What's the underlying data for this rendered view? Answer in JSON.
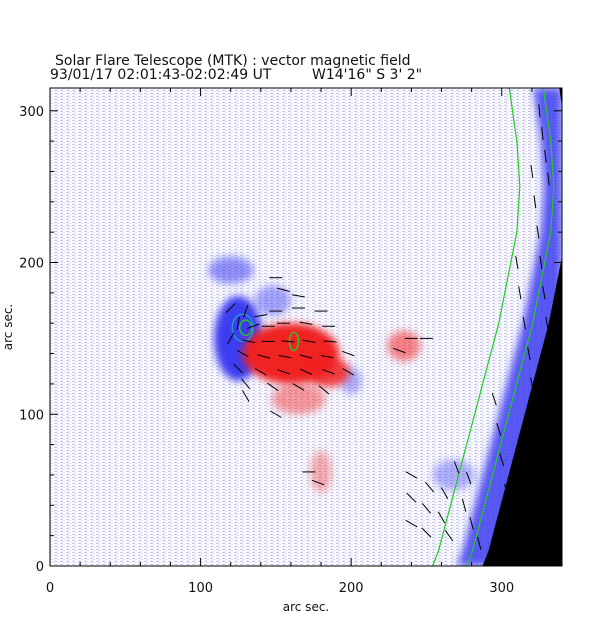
{
  "header": {
    "title": "Solar Flare Telescope (MTK) : vector magnetic field",
    "time_line": "93/01/17  02:01:43-02:02:49 UT",
    "position_line": "W14'16\"  S 3' 2\""
  },
  "chart_data": {
    "type": "heatmap",
    "title": "Solar Flare Telescope (MTK) : vector magnetic field",
    "subtitle": "93/01/17  02:01:43-02:02:49 UT    W14'16\"  S 3' 2\"",
    "xlabel": "arc sec.",
    "ylabel": "arc sec.",
    "xlim": [
      0,
      340
    ],
    "ylim": [
      0,
      315
    ],
    "xticks": [
      "0",
      "100",
      "200",
      "300"
    ],
    "yticks": [
      "0",
      "100",
      "200",
      "300"
    ],
    "grid": false,
    "colors": {
      "negative_polarity": "#3c3cf0",
      "positive_polarity": "#f02020",
      "neutral_noise": "#c8c8ee",
      "off_limb": "#000000",
      "limb_contour": "#22cc22",
      "vectors": "#000000"
    },
    "limb": [
      [
        305,
        315
      ],
      [
        310,
        280
      ],
      [
        312,
        250
      ],
      [
        310,
        220
      ],
      [
        304,
        190
      ],
      [
        298,
        160
      ],
      [
        290,
        130
      ],
      [
        282,
        100
      ],
      [
        274,
        70
      ],
      [
        266,
        40
      ],
      [
        258,
        10
      ],
      [
        254,
        0
      ]
    ],
    "features": [
      {
        "kind": "negative",
        "x": 125,
        "y": 150,
        "rx": 16,
        "ry": 28,
        "strength": 1.0
      },
      {
        "kind": "negative",
        "x": 120,
        "y": 195,
        "rx": 15,
        "ry": 9,
        "strength": 0.55
      },
      {
        "kind": "negative",
        "x": 148,
        "y": 175,
        "rx": 12,
        "ry": 10,
        "strength": 0.45
      },
      {
        "kind": "negative",
        "x": 200,
        "y": 122,
        "rx": 7,
        "ry": 9,
        "strength": 0.4
      },
      {
        "kind": "positive",
        "x": 160,
        "y": 140,
        "rx": 32,
        "ry": 20,
        "strength": 1.0
      },
      {
        "kind": "positive",
        "x": 185,
        "y": 128,
        "rx": 14,
        "ry": 10,
        "strength": 0.85
      },
      {
        "kind": "positive",
        "x": 165,
        "y": 110,
        "rx": 18,
        "ry": 10,
        "strength": 0.45
      },
      {
        "kind": "positive",
        "x": 235,
        "y": 145,
        "rx": 11,
        "ry": 10,
        "strength": 0.55
      },
      {
        "kind": "positive",
        "x": 180,
        "y": 62,
        "rx": 7,
        "ry": 14,
        "strength": 0.35
      },
      {
        "kind": "negative",
        "x": 268,
        "y": 60,
        "rx": 14,
        "ry": 10,
        "strength": 0.4
      }
    ],
    "contours": [
      {
        "color": "#2299cc",
        "x": 128,
        "y": 157,
        "rx": 7,
        "ry": 9
      },
      {
        "color": "#22cc22",
        "x": 130,
        "y": 157,
        "rx": 4,
        "ry": 5
      },
      {
        "color": "#22cc22",
        "x": 162,
        "y": 148,
        "rx": 3,
        "ry": 6
      }
    ],
    "vectors": [
      [
        120,
        170,
        45,
        1
      ],
      [
        130,
        168,
        70,
        1
      ],
      [
        140,
        165,
        10,
        1
      ],
      [
        150,
        168,
        0,
        1
      ],
      [
        165,
        170,
        0,
        1
      ],
      [
        180,
        168,
        0,
        1
      ],
      [
        125,
        160,
        80,
        1
      ],
      [
        135,
        158,
        20,
        1
      ],
      [
        145,
        158,
        0,
        1
      ],
      [
        155,
        160,
        0,
        1
      ],
      [
        170,
        160,
        -10,
        1
      ],
      [
        185,
        158,
        0,
        1
      ],
      [
        120,
        150,
        60,
        1
      ],
      [
        132,
        148,
        -10,
        1
      ],
      [
        145,
        148,
        0,
        1
      ],
      [
        158,
        148,
        -5,
        1
      ],
      [
        172,
        148,
        -10,
        1
      ],
      [
        186,
        148,
        -5,
        1
      ],
      [
        128,
        140,
        -30,
        1
      ],
      [
        142,
        138,
        -15,
        1
      ],
      [
        156,
        138,
        -10,
        1
      ],
      [
        170,
        138,
        -15,
        1
      ],
      [
        184,
        138,
        -10,
        1
      ],
      [
        198,
        140,
        -20,
        1
      ],
      [
        125,
        130,
        -45,
        1
      ],
      [
        140,
        128,
        -30,
        1
      ],
      [
        155,
        128,
        -20,
        1
      ],
      [
        170,
        128,
        -25,
        1
      ],
      [
        185,
        128,
        -20,
        1
      ],
      [
        198,
        128,
        -30,
        1
      ],
      [
        130,
        120,
        -50,
        1
      ],
      [
        148,
        118,
        -35,
        1
      ],
      [
        165,
        118,
        -30,
        1
      ],
      [
        182,
        116,
        -40,
        1
      ],
      [
        130,
        112,
        -60,
        1
      ],
      [
        150,
        190,
        0,
        1
      ],
      [
        155,
        182,
        -15,
        1
      ],
      [
        165,
        178,
        -10,
        1
      ],
      [
        240,
        150,
        0,
        1
      ],
      [
        250,
        150,
        0,
        1
      ],
      [
        232,
        142,
        -20,
        1
      ],
      [
        150,
        100,
        -30,
        1
      ],
      [
        172,
        62,
        0,
        1
      ],
      [
        178,
        55,
        -20,
        1
      ],
      [
        240,
        60,
        -30,
        1
      ],
      [
        252,
        52,
        -50,
        1
      ],
      [
        262,
        48,
        -60,
        1
      ],
      [
        240,
        45,
        -45,
        1
      ],
      [
        250,
        38,
        -50,
        1
      ],
      [
        260,
        32,
        -60,
        1
      ],
      [
        240,
        28,
        -30,
        1
      ],
      [
        250,
        22,
        -45,
        1
      ],
      [
        265,
        20,
        -55,
        1
      ],
      [
        270,
        65,
        -70,
        1
      ],
      [
        278,
        58,
        -70,
        1
      ],
      [
        275,
        40,
        -75,
        1
      ],
      [
        280,
        28,
        -75,
        1
      ],
      [
        285,
        15,
        -75,
        1
      ],
      [
        295,
        110,
        -72,
        1
      ],
      [
        298,
        90,
        -72,
        1
      ],
      [
        300,
        70,
        -73,
        1
      ],
      [
        303,
        50,
        -74,
        1
      ],
      [
        306,
        30,
        -75,
        1
      ],
      [
        310,
        200,
        -80,
        1
      ],
      [
        312,
        180,
        -80,
        1
      ],
      [
        315,
        160,
        -80,
        1
      ],
      [
        318,
        140,
        -79,
        1
      ],
      [
        320,
        120,
        -79,
        1
      ],
      [
        322,
        100,
        -78,
        1
      ],
      [
        320,
        260,
        -82,
        1
      ],
      [
        322,
        240,
        -82,
        1
      ],
      [
        324,
        220,
        -81,
        1
      ],
      [
        326,
        200,
        -81,
        1
      ],
      [
        328,
        180,
        -80,
        1
      ],
      [
        330,
        160,
        -80,
        1
      ],
      [
        325,
        300,
        -84,
        1
      ],
      [
        327,
        285,
        -84,
        1
      ],
      [
        329,
        270,
        -83,
        1
      ],
      [
        331,
        255,
        -83,
        1
      ]
    ]
  }
}
